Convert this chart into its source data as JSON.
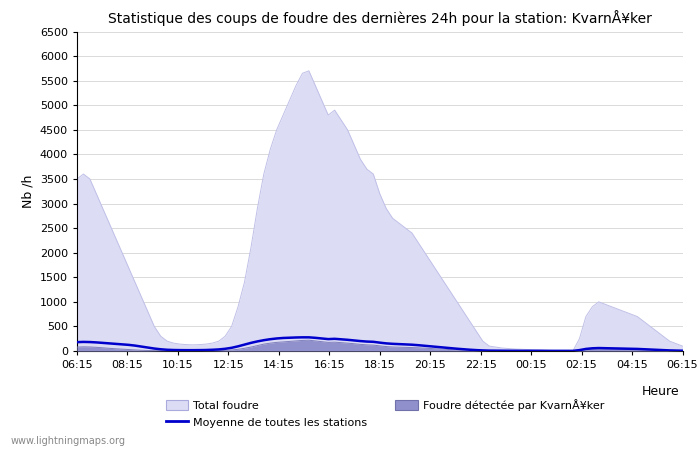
{
  "title": "Statistique des coups de foudre des dernières 24h pour la station: KvarnÅ¥ker",
  "ylabel": "Nb /h",
  "xlabel": "Heure",
  "ylim": [
    0,
    6500
  ],
  "yticks": [
    0,
    500,
    1000,
    1500,
    2000,
    2500,
    3000,
    3500,
    4000,
    4500,
    5000,
    5500,
    6000,
    6500
  ],
  "x_labels": [
    "06:15",
    "08:15",
    "10:15",
    "12:15",
    "14:15",
    "16:15",
    "18:15",
    "20:15",
    "22:15",
    "00:15",
    "02:15",
    "04:15",
    "06:15"
  ],
  "watermark": "www.lightningmaps.org",
  "legend": [
    {
      "label": "Total foudre",
      "color": "#dcdcf5",
      "type": "fill"
    },
    {
      "label": "Moyenne de toutes les stations",
      "color": "#0000cc",
      "type": "line"
    },
    {
      "label": "Foudre détectée par KvarnÅ¥ker",
      "color": "#9090cc",
      "type": "fill"
    }
  ],
  "total_foudre": [
    3500,
    3600,
    3500,
    3200,
    2900,
    2600,
    2300,
    2000,
    1700,
    1400,
    1100,
    800,
    500,
    300,
    200,
    160,
    140,
    130,
    125,
    130,
    140,
    160,
    200,
    300,
    500,
    900,
    1400,
    2100,
    2900,
    3600,
    4100,
    4500,
    4800,
    5100,
    5400,
    5650,
    5700,
    5400,
    5100,
    4800,
    4900,
    4700,
    4500,
    4200,
    3900,
    3700,
    3600,
    3200,
    2900,
    2700,
    2600,
    2500,
    2400,
    2200,
    2000,
    1800,
    1600,
    1400,
    1200,
    1000,
    800,
    600,
    400,
    200,
    100,
    80,
    60,
    50,
    40,
    35,
    30,
    25,
    20,
    15,
    10,
    8,
    7,
    6,
    250,
    700,
    900,
    1000,
    950,
    900,
    850,
    800,
    750,
    700,
    600,
    500,
    400,
    300,
    200,
    150,
    100
  ],
  "kvarn_foudre": [
    80,
    85,
    82,
    75,
    65,
    55,
    45,
    38,
    30,
    22,
    15,
    10,
    8,
    6,
    5,
    4,
    4,
    4,
    4,
    4,
    5,
    6,
    8,
    12,
    20,
    35,
    55,
    80,
    110,
    140,
    160,
    175,
    185,
    195,
    205,
    215,
    220,
    205,
    190,
    175,
    180,
    170,
    160,
    148,
    135,
    125,
    120,
    105,
    90,
    82,
    78,
    74,
    70,
    65,
    58,
    50,
    42,
    36,
    28,
    22,
    16,
    12,
    8,
    5,
    3,
    3,
    2,
    2,
    2,
    2,
    2,
    2,
    2,
    2,
    2,
    2,
    2,
    2,
    10,
    25,
    35,
    40,
    38,
    36,
    34,
    32,
    30,
    28,
    24,
    20,
    16,
    12,
    8,
    6,
    4
  ],
  "moyenne": [
    180,
    185,
    182,
    175,
    165,
    155,
    145,
    135,
    125,
    110,
    90,
    70,
    50,
    35,
    25,
    20,
    18,
    17,
    17,
    18,
    20,
    25,
    32,
    45,
    65,
    95,
    130,
    165,
    195,
    220,
    240,
    255,
    265,
    270,
    275,
    278,
    278,
    268,
    255,
    242,
    248,
    238,
    228,
    215,
    202,
    192,
    187,
    170,
    155,
    146,
    140,
    134,
    128,
    118,
    106,
    94,
    82,
    70,
    58,
    46,
    36,
    26,
    18,
    12,
    8,
    7,
    6,
    5,
    5,
    4,
    4,
    4,
    4,
    3,
    3,
    3,
    3,
    3,
    18,
    42,
    55,
    60,
    57,
    54,
    51,
    48,
    45,
    42,
    36,
    30,
    24,
    18,
    12,
    9,
    6
  ],
  "bg_color": "#ffffff",
  "plot_bg_color": "#ffffff",
  "grid_color": "#cccccc",
  "total_fill_color": "#dcdcf5",
  "total_line_color": "#c0c0e8",
  "kvarn_fill_color": "#9090cc",
  "kvarn_line_color": "#8080bb",
  "mean_line_color": "#0000cc"
}
